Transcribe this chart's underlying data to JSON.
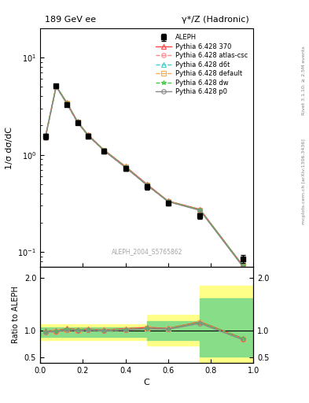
{
  "title_left": "189 GeV ee",
  "title_right": "γ*/Z (Hadronic)",
  "ylabel_main": "1/σ dσ/dC",
  "ylabel_ratio": "Ratio to ALEPH",
  "xlabel": "C",
  "right_label_top": "Rivet 3.1.10; ≥ 2.5M events",
  "right_label_bot": "mcplots.cern.ch [arXiv:1306.3436]",
  "watermark": "ALEPH_2004_S5765862",
  "aleph_x": [
    0.025,
    0.075,
    0.125,
    0.175,
    0.225,
    0.3,
    0.4,
    0.5,
    0.6,
    0.75,
    0.95
  ],
  "aleph_y": [
    1.55,
    5.1,
    3.3,
    2.15,
    1.55,
    1.1,
    0.73,
    0.47,
    0.32,
    0.235,
    0.085
  ],
  "aleph_yerr": [
    0.1,
    0.2,
    0.15,
    0.1,
    0.08,
    0.06,
    0.04,
    0.03,
    0.02,
    0.015,
    0.008
  ],
  "mc_x": [
    0.025,
    0.075,
    0.125,
    0.175,
    0.225,
    0.3,
    0.4,
    0.5,
    0.6,
    0.75,
    0.95
  ],
  "mc_370_y": [
    1.55,
    5.1,
    3.45,
    2.2,
    1.6,
    1.12,
    0.76,
    0.5,
    0.335,
    0.275,
    0.073
  ],
  "mc_atlascsc_y": [
    1.5,
    5.0,
    3.35,
    2.15,
    1.57,
    1.1,
    0.74,
    0.49,
    0.33,
    0.27,
    0.072
  ],
  "mc_d6t_y": [
    1.53,
    5.05,
    3.38,
    2.17,
    1.58,
    1.11,
    0.75,
    0.49,
    0.332,
    0.272,
    0.072
  ],
  "mc_default_y": [
    1.52,
    5.05,
    3.38,
    2.17,
    1.58,
    1.11,
    0.75,
    0.49,
    0.332,
    0.272,
    0.072
  ],
  "mc_dw_y": [
    1.54,
    5.08,
    3.42,
    2.19,
    1.59,
    1.11,
    0.75,
    0.49,
    0.333,
    0.272,
    0.073
  ],
  "mc_p0_y": [
    1.52,
    5.02,
    3.36,
    2.16,
    1.57,
    1.1,
    0.74,
    0.49,
    0.33,
    0.268,
    0.071
  ],
  "ratio_370": [
    1.0,
    1.0,
    1.045,
    1.023,
    1.032,
    1.018,
    1.041,
    1.064,
    1.047,
    1.17,
    0.859
  ],
  "ratio_atlascsc": [
    0.968,
    0.98,
    1.015,
    1.0,
    1.013,
    1.0,
    1.014,
    1.043,
    1.031,
    1.149,
    0.847
  ],
  "ratio_d6t": [
    0.987,
    0.99,
    1.024,
    1.009,
    1.019,
    1.009,
    1.027,
    1.043,
    1.038,
    1.157,
    0.847
  ],
  "ratio_default": [
    0.981,
    0.99,
    1.024,
    1.009,
    1.019,
    1.009,
    1.027,
    1.043,
    1.038,
    1.157,
    0.847
  ],
  "ratio_dw": [
    0.994,
    0.996,
    1.036,
    1.019,
    1.026,
    1.009,
    1.027,
    1.043,
    1.041,
    1.157,
    0.859
  ],
  "ratio_p0": [
    0.981,
    0.984,
    1.018,
    1.005,
    1.013,
    1.0,
    1.014,
    1.043,
    1.031,
    1.14,
    0.835
  ],
  "yellow_band_x": [
    0.0,
    0.05,
    0.1,
    0.15,
    0.2,
    0.25,
    0.5,
    0.75,
    0.875,
    1.0
  ],
  "yellow_band_lo": [
    0.82,
    0.82,
    0.82,
    0.82,
    0.82,
    0.82,
    0.72,
    0.4,
    0.4,
    0.4
  ],
  "yellow_band_hi": [
    1.12,
    1.12,
    1.12,
    1.12,
    1.12,
    1.12,
    1.3,
    1.85,
    1.85,
    1.85
  ],
  "green_band_x": [
    0.0,
    0.05,
    0.1,
    0.15,
    0.2,
    0.25,
    0.5,
    0.75,
    0.875,
    1.0
  ],
  "green_band_lo": [
    0.88,
    0.88,
    0.88,
    0.88,
    0.88,
    0.88,
    0.82,
    0.52,
    0.52,
    0.52
  ],
  "green_band_hi": [
    1.06,
    1.06,
    1.06,
    1.06,
    1.06,
    1.06,
    1.18,
    1.62,
    1.62,
    1.62
  ],
  "color_370": "#ff4444",
  "color_atlascsc": "#ff8888",
  "color_d6t": "#44cccc",
  "color_default": "#ffaa44",
  "color_dw": "#44cc44",
  "color_p0": "#888888",
  "bg_color": "#ffffff",
  "ylim_main": [
    0.07,
    20
  ],
  "ylim_ratio": [
    0.4,
    2.2
  ],
  "xlim": [
    0.0,
    1.0
  ]
}
